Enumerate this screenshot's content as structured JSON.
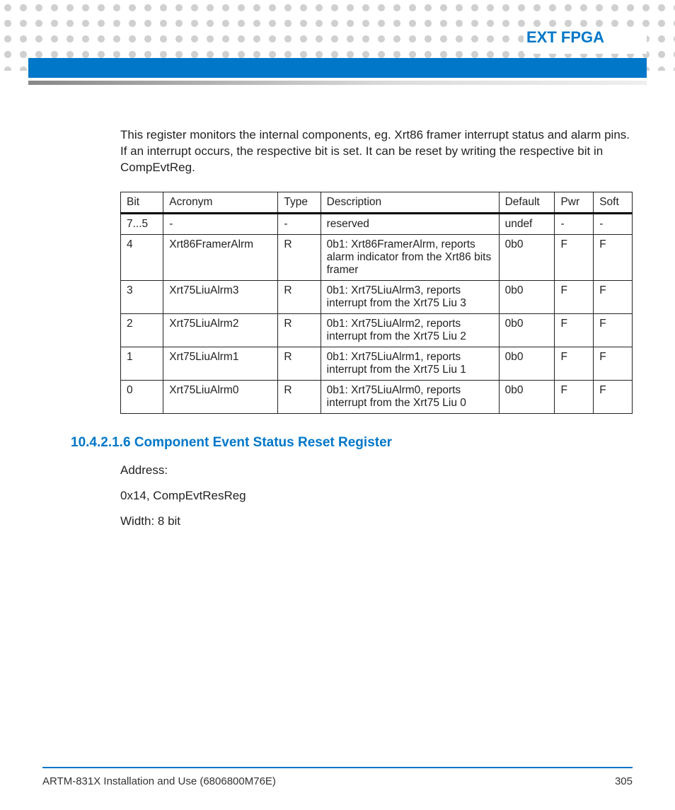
{
  "header": {
    "title": "EXT FPGA"
  },
  "intro": "This register monitors the internal components, eg. Xrt86 framer interrupt status and alarm pins. If an interrupt occurs, the respective bit is set. It can be reset by writing the respective bit in CompEvtReg.",
  "table": {
    "columns": [
      "Bit",
      "Acronym",
      "Type",
      "Description",
      "Default",
      "Pwr",
      "Soft"
    ],
    "rows": [
      [
        "7...5",
        "-",
        "-",
        "reserved",
        "undef",
        "-",
        "-"
      ],
      [
        "4",
        "Xrt86FramerAlrm",
        "R",
        "0b1: Xrt86FramerAlrm, reports alarm indicator from the Xrt86 bits framer",
        "0b0",
        "F",
        "F"
      ],
      [
        "3",
        "Xrt75LiuAlrm3",
        "R",
        "0b1: Xrt75LiuAlrm3, reports interrupt from the Xrt75 Liu 3",
        "0b0",
        "F",
        "F"
      ],
      [
        "2",
        "Xrt75LiuAlrm2",
        "R",
        "0b1: Xrt75LiuAlrm2, reports interrupt from the Xrt75 Liu 2",
        "0b0",
        "F",
        "F"
      ],
      [
        "1",
        "Xrt75LiuAlrm1",
        "R",
        "0b1: Xrt75LiuAlrm1, reports interrupt from the Xrt75 Liu 1",
        "0b0",
        "F",
        "F"
      ],
      [
        "0",
        "Xrt75LiuAlrm0",
        "R",
        "0b1: Xrt75LiuAlrm0, reports interrupt from the Xrt75 Liu 0",
        "0b0",
        "F",
        "F"
      ]
    ]
  },
  "section": {
    "number": "10.4.2.1.6",
    "title": "Component Event Status Reset Register",
    "address_label": "Address:",
    "address_value": "0x14, CompEvtResReg",
    "width_label": "Width: 8 bit"
  },
  "footer": {
    "doc": "ARTM-831X Installation and Use (6806800M76E)",
    "page": "305"
  },
  "colors": {
    "brand_blue": "#0077c8",
    "grid_gray": "#d0d0d0"
  }
}
